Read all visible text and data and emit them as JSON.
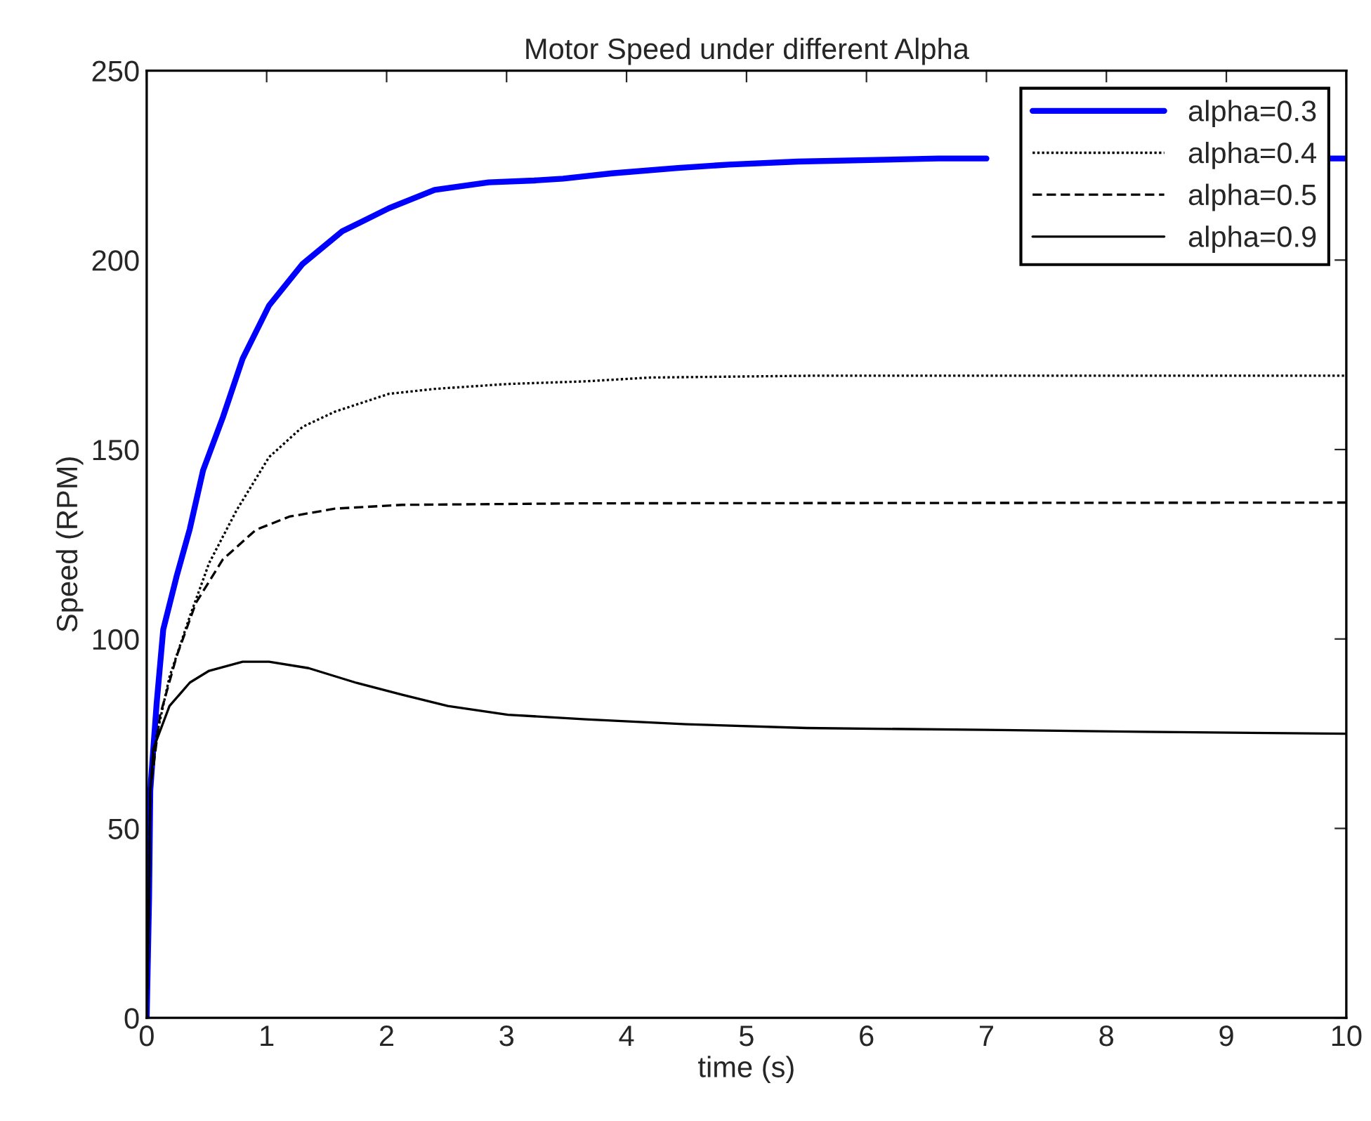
{
  "chart_data": {
    "type": "line",
    "title": "Motor Speed under different Alpha",
    "xlabel": "time (s)",
    "ylabel": "Speed (RPM)",
    "xlim": [
      0,
      10
    ],
    "ylim": [
      0,
      250
    ],
    "xticks": [
      0,
      1,
      2,
      3,
      4,
      5,
      6,
      7,
      8,
      9,
      10
    ],
    "yticks": [
      0,
      50,
      100,
      150,
      200,
      250
    ],
    "grid": false,
    "legend": "top right",
    "marker": "none",
    "series": [
      {
        "name": "alpha=0.3",
        "color": "#0000ff",
        "line_style": "solid",
        "x": [
          0,
          0.02,
          0.03,
          0.055,
          0.083,
          0.138,
          0.249,
          0.359,
          0.47,
          0.635,
          0.8,
          1.02,
          1.3,
          1.63,
          2.02,
          2.4,
          2.85,
          3.23,
          3.47,
          3.88,
          4.43,
          4.85,
          5.43,
          6.6,
          7.0,
          8.0,
          9.85,
          10
        ],
        "values": [
          0,
          31.5,
          60,
          71,
          83,
          102.5,
          116.5,
          129,
          144.5,
          158.5,
          174,
          188,
          199,
          207.6,
          213.7,
          218.5,
          220.5,
          221,
          221.5,
          222.9,
          224.3,
          225.2,
          226,
          226.8,
          226.8,
          null,
          226.8,
          226.8
        ]
      },
      {
        "name": "alpha=0.4",
        "color": "#000000",
        "line_style": "dotted",
        "x": [
          0,
          0.02,
          0.03,
          0.083,
          0.19,
          0.36,
          0.52,
          0.75,
          1.02,
          1.3,
          1.57,
          2.02,
          2.4,
          3.01,
          3.66,
          4.2,
          5.6,
          10
        ],
        "values": [
          0,
          31.5,
          60,
          74.5,
          90,
          106,
          120,
          134,
          148,
          156,
          160,
          164.7,
          166,
          167.3,
          168,
          169,
          169.5,
          169.5
        ]
      },
      {
        "name": "alpha=0.5",
        "color": "#000000",
        "line_style": "dashed",
        "x": [
          0,
          0.02,
          0.03,
          0.11,
          0.25,
          0.41,
          0.635,
          0.91,
          1.19,
          1.57,
          2.13,
          3.66,
          10
        ],
        "values": [
          0,
          31.5,
          60,
          79.7,
          95.5,
          109.5,
          121,
          128.8,
          132.3,
          134.4,
          135.4,
          135.8,
          136
        ]
      },
      {
        "name": "alpha=0.9",
        "color": "#000000",
        "line_style": "solid",
        "x": [
          0,
          0.02,
          0.03,
          0.055,
          0.19,
          0.36,
          0.52,
          0.8,
          1.02,
          1.35,
          1.74,
          2.13,
          2.51,
          3.01,
          3.66,
          4.5,
          5.5,
          7,
          8.3,
          10
        ],
        "values": [
          0,
          31.5,
          60,
          71,
          82.3,
          88.5,
          91.6,
          94,
          94,
          92.3,
          88.5,
          85.3,
          82.3,
          80,
          78.8,
          77.5,
          76.5,
          76,
          75.5,
          75
        ]
      }
    ]
  }
}
